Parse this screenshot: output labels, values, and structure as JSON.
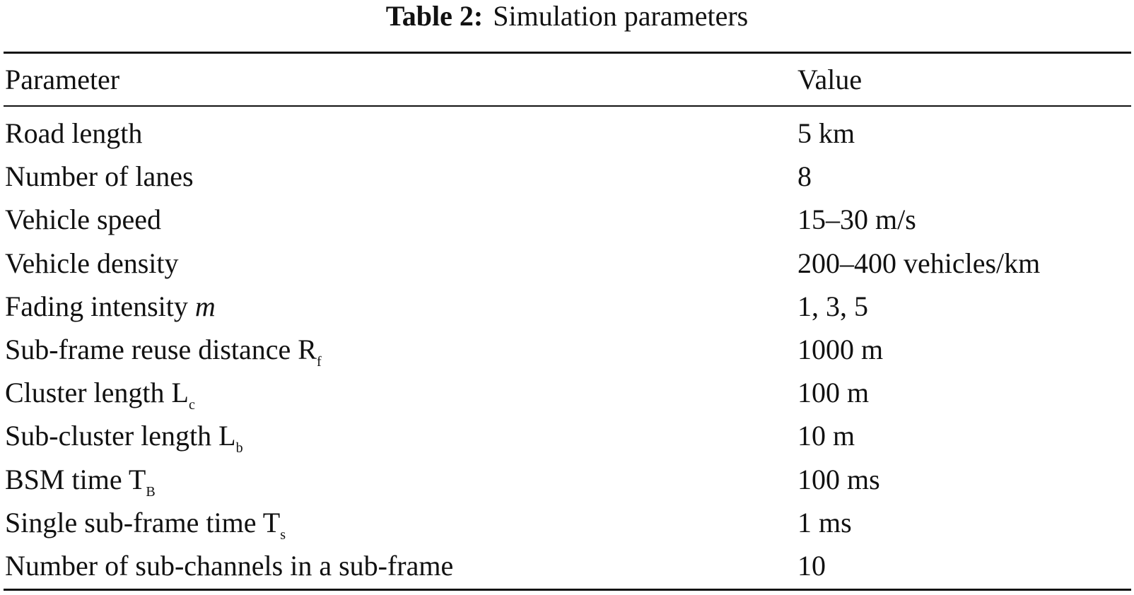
{
  "title": {
    "label": "Table 2:",
    "text": "Simulation parameters"
  },
  "table": {
    "header": [
      "Parameter",
      "Value"
    ],
    "rows": [
      {
        "parameter": "Road length",
        "value": "5 km"
      },
      {
        "parameter": "Number of lanes",
        "value": "8"
      },
      {
        "parameter": "Vehicle speed",
        "value": "15–30 m/s"
      },
      {
        "parameter": "Vehicle density",
        "value": "200–400 vehicles/km"
      },
      {
        "parameter": "Fading intensity",
        "symbol": "m",
        "italic": true,
        "value": "1, 3, 5"
      },
      {
        "parameter": "Sub-frame reuse distance",
        "symbol": "R",
        "subscript": "f",
        "value": "1000 m"
      },
      {
        "parameter": "Cluster length",
        "symbol": "L",
        "subscript": "c",
        "value": "100 m"
      },
      {
        "parameter": "Sub-cluster length",
        "symbol": "L",
        "subscript": "b",
        "value": "10 m"
      },
      {
        "parameter": "BSM time",
        "symbol": "T",
        "subscript": "B",
        "value": "100 ms"
      },
      {
        "parameter": "Single sub-frame time",
        "symbol": "T",
        "subscript": "s",
        "value": "1 ms"
      },
      {
        "parameter": "Number of sub-channels in a sub-frame",
        "value": "10"
      }
    ]
  }
}
